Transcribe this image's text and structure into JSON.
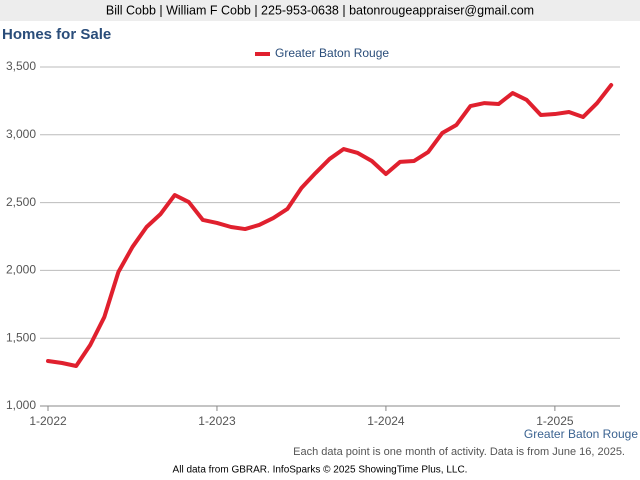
{
  "header": "Bill Cobb | William F Cobb | 225-953-0638 | batonrougeappraiser@gmail.com",
  "chart_data": {
    "type": "line",
    "title": "Homes for Sale",
    "categories": [
      "1-2022",
      null,
      null,
      null,
      null,
      null,
      null,
      null,
      null,
      null,
      null,
      null,
      "1-2023",
      null,
      null,
      null,
      null,
      null,
      null,
      null,
      null,
      null,
      null,
      null,
      "1-2024",
      null,
      null,
      null,
      null,
      null,
      null,
      null,
      null,
      null,
      null,
      null,
      "1-2025",
      null,
      null,
      null,
      null
    ],
    "series": [
      {
        "name": "Greater Baton Rouge",
        "color": "#e0202e",
        "values": [
          1332,
          1317,
          1295,
          1450,
          1656,
          1988,
          2173,
          2320,
          2416,
          2556,
          2504,
          2372,
          2350,
          2320,
          2305,
          2335,
          2386,
          2453,
          2608,
          2718,
          2822,
          2895,
          2866,
          2807,
          2711,
          2800,
          2807,
          2873,
          3013,
          3072,
          3212,
          3234,
          3227,
          3308,
          3257,
          3146,
          3153,
          3168,
          3131,
          3234,
          3367
        ]
      }
    ],
    "ylim": [
      1000,
      3500
    ],
    "yticks": [
      {
        "value": 1000,
        "label": "1,000"
      },
      {
        "value": 1500,
        "label": "1,500"
      },
      {
        "value": 2000,
        "label": "2,000"
      },
      {
        "value": 2500,
        "label": "2,500"
      },
      {
        "value": 3000,
        "label": "3,000"
      },
      {
        "value": 3500,
        "label": "3,500"
      }
    ],
    "grid": true,
    "legend": "top",
    "x_label": "Greater Baton Rouge",
    "note": "Each data point is one month of activity. Data is from June 16, 2025.",
    "source": "All data from GBRAR. InfoSparks © 2025 ShowingTime Plus, LLC."
  }
}
